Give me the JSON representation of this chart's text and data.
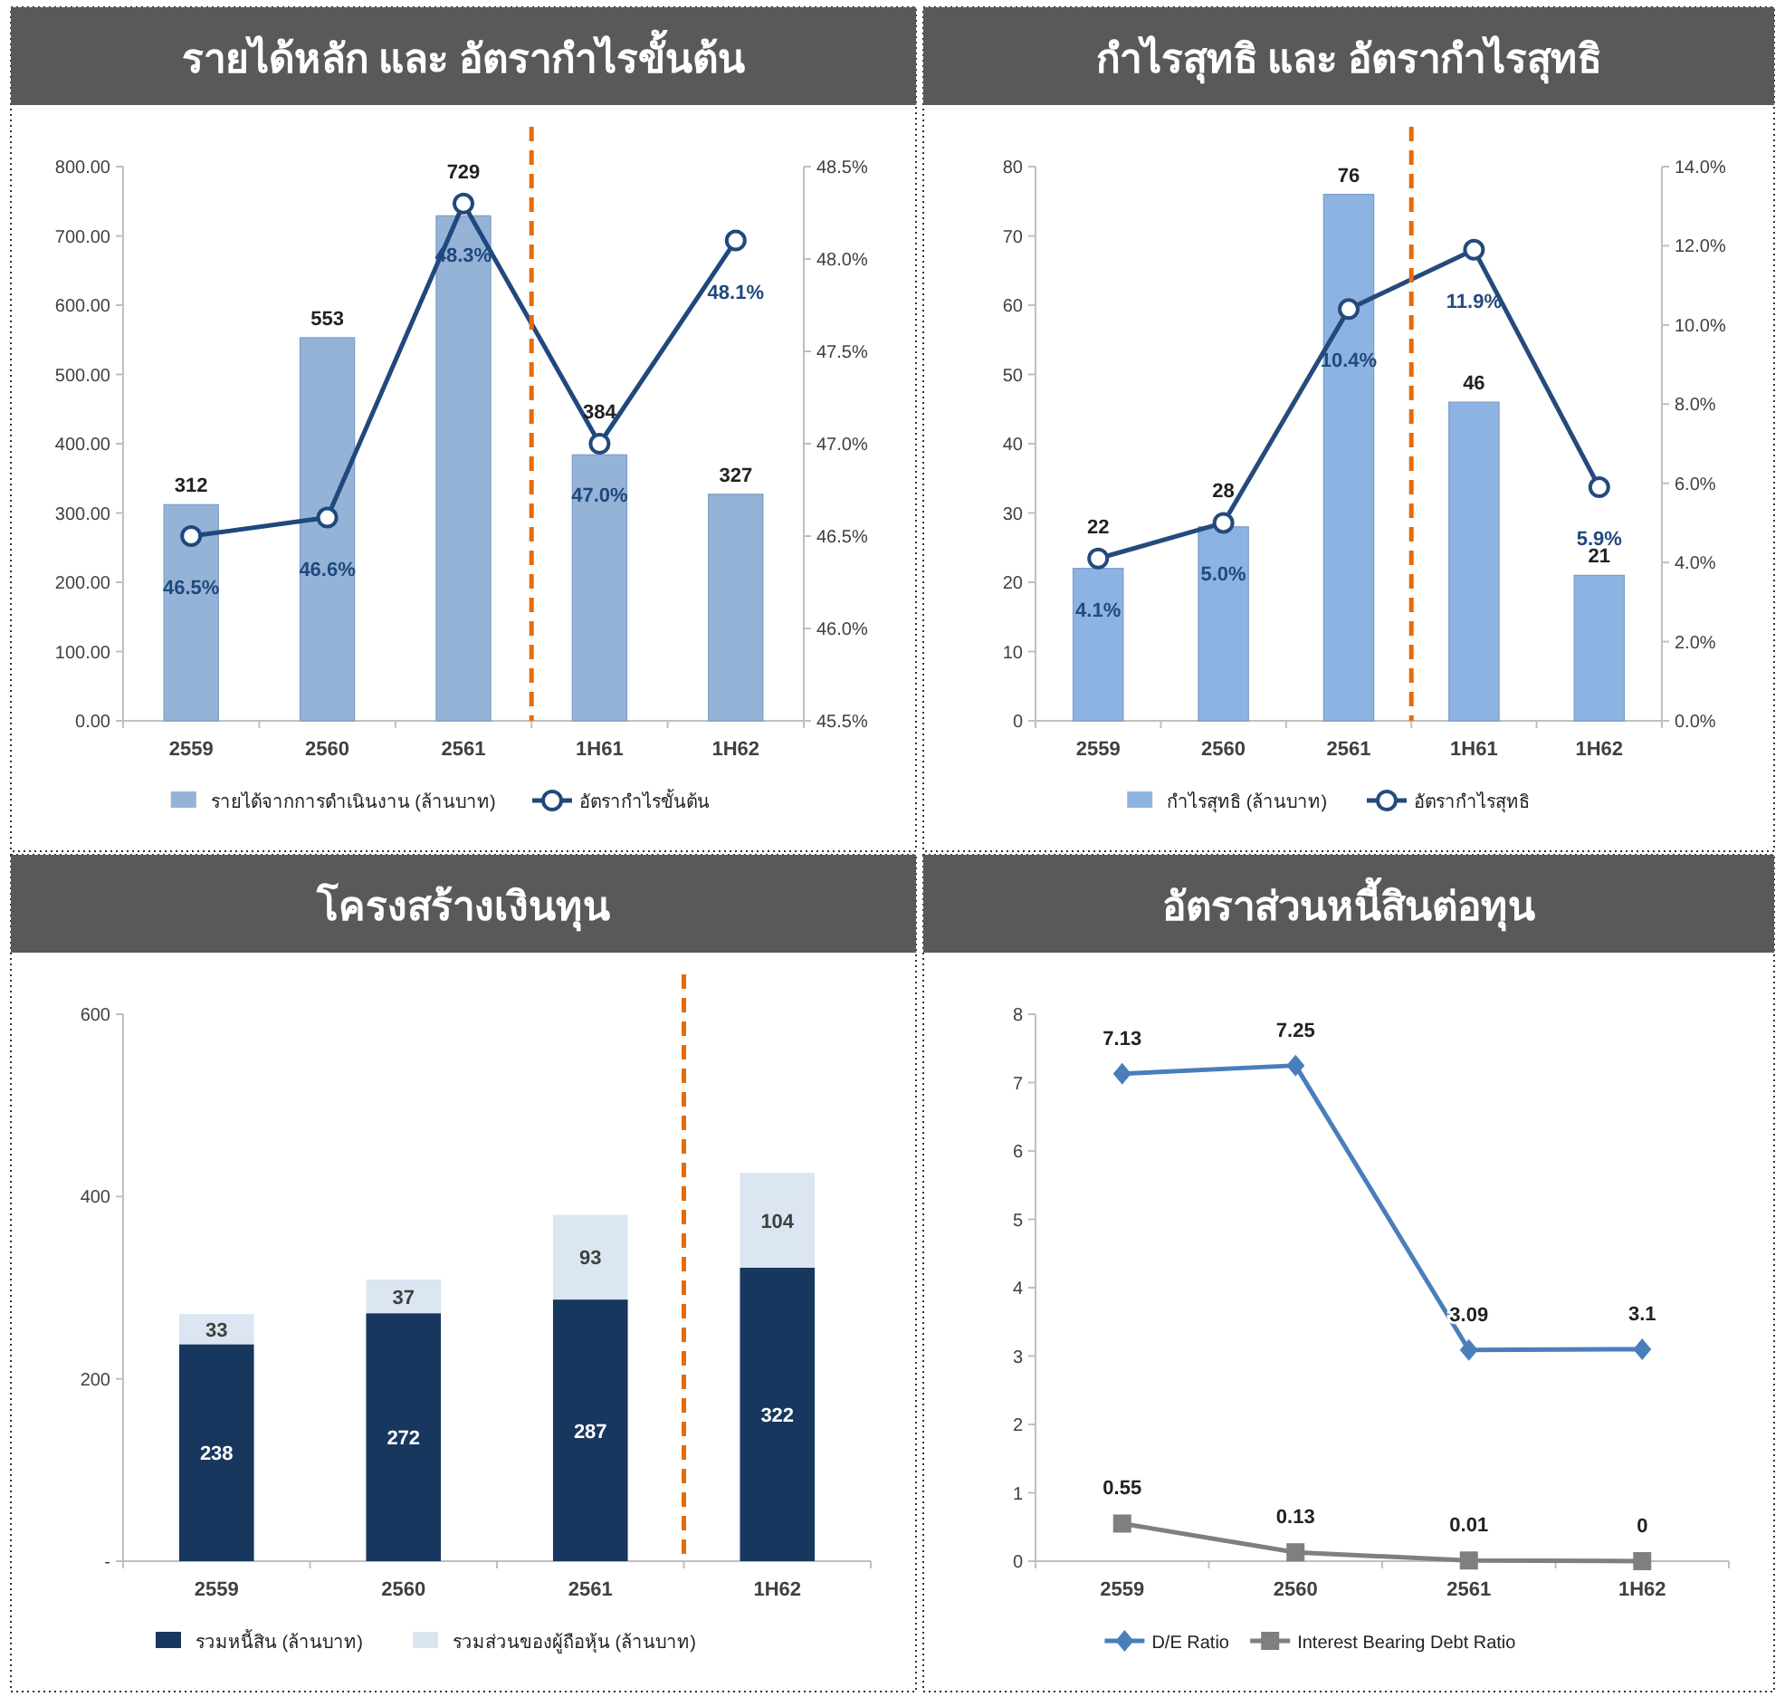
{
  "chart_data": [
    {
      "type": "bar",
      "title": "รายได้หลัก และ อัตรากำไรขั้นต้น",
      "categories": [
        "2559",
        "2560",
        "2561",
        "1H61",
        "1H62"
      ],
      "series": [
        {
          "name": "รายได้จากการดำเนินงาน (ล้านบาท)",
          "color": "#95b3d7",
          "values": [
            312,
            553,
            729,
            384,
            327
          ],
          "value_labels": [
            "312",
            "553",
            "729",
            "384",
            "327"
          ]
        },
        {
          "name": "อัตรากำไรขั้นต้น",
          "type": "line",
          "axis": "y2",
          "color": "#1f497d",
          "marker": "circle",
          "values": [
            46.5,
            46.6,
            48.3,
            47.0,
            48.1
          ],
          "value_labels": [
            "46.5%",
            "46.6%",
            "48.3%",
            "47.0%",
            "48.1%"
          ]
        }
      ],
      "ylim": [
        0,
        800
      ],
      "yticks": [
        {
          "value": 0,
          "label": "0.00"
        },
        {
          "value": 100,
          "label": "100.00"
        },
        {
          "value": 200,
          "label": "200.00"
        },
        {
          "value": 300,
          "label": "300.00"
        },
        {
          "value": 400,
          "label": "400.00"
        },
        {
          "value": 500,
          "label": "500.00"
        },
        {
          "value": 600,
          "label": "600.00"
        },
        {
          "value": 700,
          "label": "700.00"
        },
        {
          "value": 800,
          "label": "800.00"
        }
      ],
      "y2lim": [
        45.5,
        48.5
      ],
      "y2ticks": [
        {
          "value": 45.5,
          "label": "45.5%"
        },
        {
          "value": 46.0,
          "label": "46.0%"
        },
        {
          "value": 46.5,
          "label": "46.5%"
        },
        {
          "value": 47.0,
          "label": "47.0%"
        },
        {
          "value": 47.5,
          "label": "47.5%"
        },
        {
          "value": 48.0,
          "label": "48.0%"
        },
        {
          "value": 48.5,
          "label": "48.5%"
        }
      ],
      "legend": "bottom"
    },
    {
      "type": "bar",
      "title": "กำไรสุทธิ และ อัตรากำไรสุทธิ",
      "categories": [
        "2559",
        "2560",
        "2561",
        "1H61",
        "1H62"
      ],
      "series": [
        {
          "name": "กำไรสุทธิ (ล้านบาท)",
          "color": "#8db3e2",
          "values": [
            22,
            28,
            76,
            46,
            21
          ],
          "value_labels": [
            "22",
            "28",
            "76",
            "46",
            "21"
          ]
        },
        {
          "name": "อัตรากำไรสุทธิ",
          "type": "line",
          "axis": "y2",
          "color": "#254a7c",
          "marker": "circle",
          "values": [
            4.1,
            5.0,
            10.4,
            11.9,
            5.9
          ],
          "value_labels": [
            "4.1%",
            "5.0%",
            "10.4%",
            "11.9%",
            "5.9%"
          ]
        }
      ],
      "ylim": [
        0,
        80
      ],
      "yticks": [
        0,
        10,
        20,
        30,
        40,
        50,
        60,
        70,
        80
      ],
      "y2lim": [
        0,
        14
      ],
      "y2ticks": [
        {
          "value": 0,
          "label": "0.0%"
        },
        {
          "value": 2,
          "label": "2.0%"
        },
        {
          "value": 4,
          "label": "4.0%"
        },
        {
          "value": 6,
          "label": "6.0%"
        },
        {
          "value": 8,
          "label": "8.0%"
        },
        {
          "value": 10,
          "label": "10.0%"
        },
        {
          "value": 12,
          "label": "12.0%"
        },
        {
          "value": 14,
          "label": "14.0%"
        }
      ],
      "legend": "bottom"
    },
    {
      "type": "bar",
      "title": "โครงสร้างเงินทุน",
      "categories": [
        "2559",
        "2560",
        "2561",
        "1H62"
      ],
      "stacked": true,
      "data_labels": true,
      "series": [
        {
          "name": "รวมหนี้สิน (ล้านบาท)",
          "color": "#17375e",
          "values": [
            238,
            272,
            287,
            322
          ]
        },
        {
          "name": "รวมส่วนของผู้ถือหุ้น (ล้านบาท)",
          "color": "#dce6f2",
          "values": [
            33,
            37,
            93,
            104
          ]
        }
      ],
      "ylim": [
        0,
        600
      ],
      "yticks": [
        {
          "value": 0,
          "label": "-"
        },
        200,
        400,
        600
      ],
      "legend": "bottom"
    },
    {
      "type": "line",
      "title": "อัตราส่วนหนี้สินต่อทุน",
      "categories": [
        "2559",
        "2560",
        "2561",
        "1H62"
      ],
      "data_labels": true,
      "series": [
        {
          "name": "D/E Ratio",
          "color": "#4a7ebb",
          "marker": "diamond",
          "values": [
            7.13,
            7.25,
            3.09,
            3.1
          ]
        },
        {
          "name": "Interest Bearing Debt Ratio",
          "color": "#7f7f7f",
          "marker": "square",
          "values": [
            0.55,
            0.13,
            0.01,
            0
          ]
        }
      ],
      "ylim": [
        0,
        8
      ],
      "yticks": [
        0,
        1,
        2,
        3,
        4,
        5,
        6,
        7,
        8
      ],
      "legend": "bottom"
    }
  ]
}
